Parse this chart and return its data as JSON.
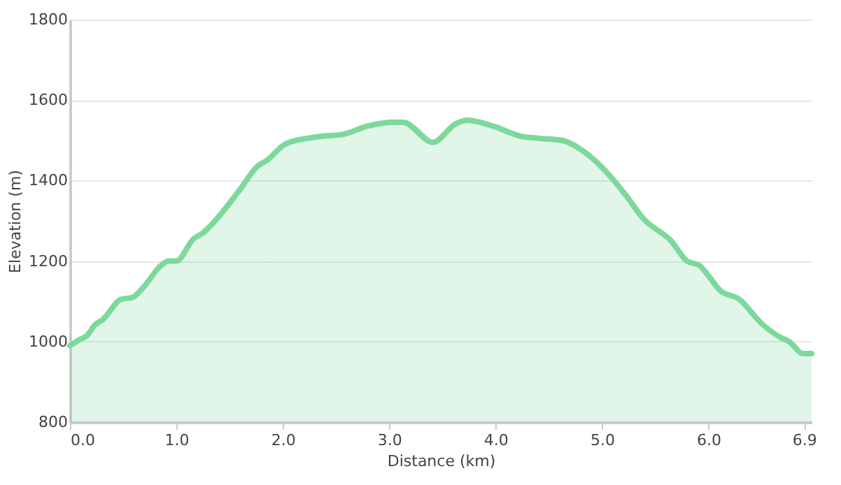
{
  "chart_data": {
    "type": "area",
    "xlabel": "Distance   (km)",
    "ylabel": "Elevation (m)",
    "x": [
      0,
      0.09,
      0.16,
      0.23,
      0.31,
      0.48,
      0.59,
      0.69,
      0.86,
      0.93,
      1.0,
      1.16,
      1.25,
      1.38,
      1.59,
      1.76,
      1.85,
      2.02,
      2.23,
      2.36,
      2.57,
      2.79,
      3.04,
      3.13,
      3.41,
      3.62,
      3.73,
      3.98,
      4.24,
      4.41,
      4.62,
      4.84,
      5.01,
      5.22,
      5.39,
      5.65,
      5.8,
      5.91,
      6.12,
      6.29,
      6.5,
      6.68,
      6.76,
      6.89,
      6.97
    ],
    "series": [
      {
        "color": "#7dd99b",
        "values": [
          990,
          1005,
          1015,
          1040,
          1055,
          1105,
          1110,
          1135,
          1190,
          1200,
          1200,
          1255,
          1270,
          1305,
          1375,
          1435,
          1450,
          1490,
          1505,
          1510,
          1515,
          1535,
          1545,
          1545,
          1495,
          1540,
          1550,
          1535,
          1510,
          1505,
          1500,
          1470,
          1430,
          1365,
          1305,
          1250,
          1200,
          1190,
          1125,
          1105,
          1045,
          1010,
          1000,
          970,
          970
        ]
      }
    ],
    "xlim": [
      0,
      6.97
    ],
    "ylim": [
      800,
      1800
    ],
    "xticks": [
      {
        "value": 0,
        "label": "0.0"
      },
      {
        "value": 1,
        "label": "1.0"
      },
      {
        "value": 2,
        "label": "2.0"
      },
      {
        "value": 3,
        "label": "3.0"
      },
      {
        "value": 4,
        "label": "4.0"
      },
      {
        "value": 5,
        "label": "5.0"
      },
      {
        "value": 6,
        "label": "6.0"
      },
      6.9
    ],
    "yticks": [
      800,
      1000,
      1200,
      1400,
      1600,
      1800
    ],
    "grid": "y",
    "marker": "none",
    "line_style": "solid"
  }
}
